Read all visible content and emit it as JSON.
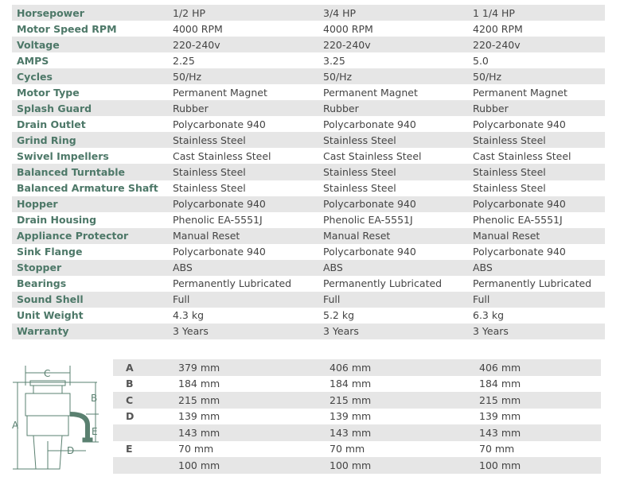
{
  "colors": {
    "label": "#4d7868",
    "shade": "#e6e6e6",
    "drawing": "#5a8070"
  },
  "specs": [
    {
      "label": "Horsepower",
      "values": [
        "1/2 HP",
        "3/4 HP",
        "1 1/4 HP"
      ]
    },
    {
      "label": "Motor Speed RPM",
      "values": [
        "4000 RPM",
        "4000 RPM",
        "4200 RPM"
      ]
    },
    {
      "label": "Voltage",
      "values": [
        "220-240v",
        "220-240v",
        "220-240v"
      ]
    },
    {
      "label": "AMPS",
      "values": [
        "2.25",
        "3.25",
        "5.0"
      ]
    },
    {
      "label": "Cycles",
      "values": [
        "50/Hz",
        "50/Hz",
        "50/Hz"
      ]
    },
    {
      "label": "Motor Type",
      "values": [
        "Permanent Magnet",
        "Permanent Magnet",
        "Permanent Magnet"
      ]
    },
    {
      "label": "Splash Guard",
      "values": [
        "Rubber",
        "Rubber",
        "Rubber"
      ]
    },
    {
      "label": "Drain Outlet",
      "values": [
        "Polycarbonate 940",
        "Polycarbonate 940",
        "Polycarbonate 940"
      ]
    },
    {
      "label": "Grind Ring",
      "values": [
        "Stainless Steel",
        "Stainless Steel",
        "Stainless Steel"
      ]
    },
    {
      "label": "Swivel Impellers",
      "values": [
        "Cast Stainless Steel",
        "Cast Stainless Steel",
        "Cast Stainless Steel"
      ]
    },
    {
      "label": "Balanced Turntable",
      "values": [
        "Stainless Steel",
        "Stainless Steel",
        "Stainless Steel"
      ]
    },
    {
      "label": "Balanced Armature Shaft",
      "values": [
        "Stainless Steel",
        "Stainless Steel",
        "Stainless Steel"
      ]
    },
    {
      "label": "Hopper",
      "values": [
        "Polycarbonate 940",
        "Polycarbonate 940",
        "Polycarbonate 940"
      ]
    },
    {
      "label": "Drain Housing",
      "values": [
        "Phenolic EA-5551J",
        "Phenolic EA-5551J",
        "Phenolic EA-5551J"
      ]
    },
    {
      "label": "Appliance Protector",
      "values": [
        "Manual Reset",
        "Manual Reset",
        "Manual Reset"
      ]
    },
    {
      "label": "Sink Flange",
      "values": [
        "Polycarbonate 940",
        "Polycarbonate 940",
        "Polycarbonate 940"
      ]
    },
    {
      "label": "Stopper",
      "values": [
        "ABS",
        "ABS",
        "ABS"
      ]
    },
    {
      "label": "Bearings",
      "values": [
        "Permanently Lubricated",
        "Permanently Lubricated",
        "Permanently Lubricated"
      ]
    },
    {
      "label": "Sound Shell",
      "values": [
        "Full",
        "Full",
        "Full"
      ]
    },
    {
      "label": "Unit Weight",
      "values": [
        "4.3 kg",
        "5.2 kg",
        "6.3 kg"
      ]
    },
    {
      "label": "Warranty",
      "values": [
        "3 Years",
        "3 Years",
        "3 Years"
      ]
    }
  ],
  "dimensions": [
    {
      "label": "A",
      "values": [
        "379 mm",
        "406 mm",
        "406 mm"
      ]
    },
    {
      "label": "B",
      "values": [
        "184 mm",
        "184 mm",
        "184 mm"
      ]
    },
    {
      "label": "C",
      "values": [
        "215 mm",
        "215 mm",
        "215 mm"
      ]
    },
    {
      "label": "D",
      "values": [
        "139 mm",
        "139 mm",
        "139 mm"
      ]
    },
    {
      "label": "",
      "values": [
        "143 mm",
        "143 mm",
        "143 mm"
      ]
    },
    {
      "label": "E",
      "values": [
        "70 mm",
        "70 mm",
        "70 mm"
      ]
    },
    {
      "label": "",
      "values": [
        "100 mm",
        "100 mm",
        "100 mm"
      ]
    }
  ],
  "diagram": {
    "a": "A",
    "b": "B",
    "c": "C",
    "d": "D",
    "e": "E"
  }
}
